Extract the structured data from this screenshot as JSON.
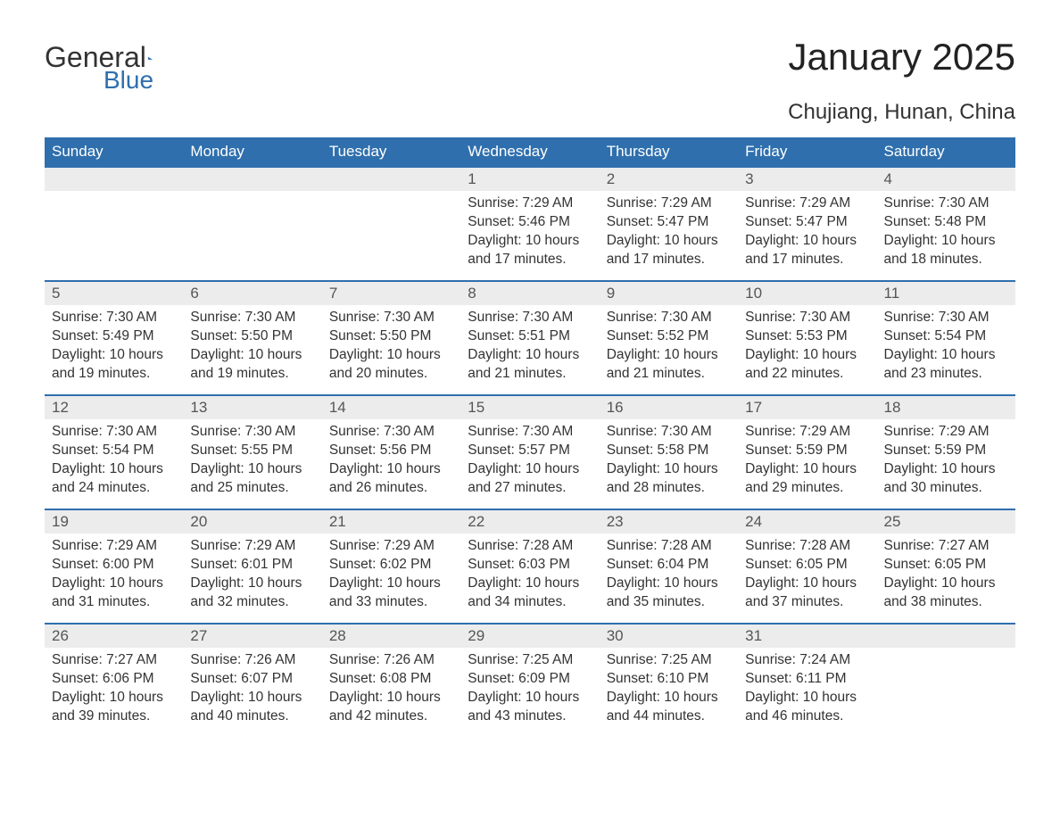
{
  "brand": {
    "part1": "General",
    "part2": "Blue",
    "logo_color": "#2f6fad"
  },
  "title": "January 2025",
  "location": "Chujiang, Hunan, China",
  "colors": {
    "header_bg": "#2f6fad",
    "header_text": "#ffffff",
    "daynum_bg": "#ececec",
    "daynum_border": "#2f6fad",
    "body_text": "#333333",
    "page_bg": "#ffffff"
  },
  "typography": {
    "title_fontsize_pt": 32,
    "location_fontsize_pt": 18,
    "header_fontsize_pt": 13,
    "body_fontsize_pt": 12
  },
  "weekdays": [
    "Sunday",
    "Monday",
    "Tuesday",
    "Wednesday",
    "Thursday",
    "Friday",
    "Saturday"
  ],
  "weeks": [
    [
      {
        "day": "",
        "sunrise": "",
        "sunset": "",
        "daylight": ""
      },
      {
        "day": "",
        "sunrise": "",
        "sunset": "",
        "daylight": ""
      },
      {
        "day": "",
        "sunrise": "",
        "sunset": "",
        "daylight": ""
      },
      {
        "day": "1",
        "sunrise": "Sunrise: 7:29 AM",
        "sunset": "Sunset: 5:46 PM",
        "daylight": "Daylight: 10 hours and 17 minutes."
      },
      {
        "day": "2",
        "sunrise": "Sunrise: 7:29 AM",
        "sunset": "Sunset: 5:47 PM",
        "daylight": "Daylight: 10 hours and 17 minutes."
      },
      {
        "day": "3",
        "sunrise": "Sunrise: 7:29 AM",
        "sunset": "Sunset: 5:47 PM",
        "daylight": "Daylight: 10 hours and 17 minutes."
      },
      {
        "day": "4",
        "sunrise": "Sunrise: 7:30 AM",
        "sunset": "Sunset: 5:48 PM",
        "daylight": "Daylight: 10 hours and 18 minutes."
      }
    ],
    [
      {
        "day": "5",
        "sunrise": "Sunrise: 7:30 AM",
        "sunset": "Sunset: 5:49 PM",
        "daylight": "Daylight: 10 hours and 19 minutes."
      },
      {
        "day": "6",
        "sunrise": "Sunrise: 7:30 AM",
        "sunset": "Sunset: 5:50 PM",
        "daylight": "Daylight: 10 hours and 19 minutes."
      },
      {
        "day": "7",
        "sunrise": "Sunrise: 7:30 AM",
        "sunset": "Sunset: 5:50 PM",
        "daylight": "Daylight: 10 hours and 20 minutes."
      },
      {
        "day": "8",
        "sunrise": "Sunrise: 7:30 AM",
        "sunset": "Sunset: 5:51 PM",
        "daylight": "Daylight: 10 hours and 21 minutes."
      },
      {
        "day": "9",
        "sunrise": "Sunrise: 7:30 AM",
        "sunset": "Sunset: 5:52 PM",
        "daylight": "Daylight: 10 hours and 21 minutes."
      },
      {
        "day": "10",
        "sunrise": "Sunrise: 7:30 AM",
        "sunset": "Sunset: 5:53 PM",
        "daylight": "Daylight: 10 hours and 22 minutes."
      },
      {
        "day": "11",
        "sunrise": "Sunrise: 7:30 AM",
        "sunset": "Sunset: 5:54 PM",
        "daylight": "Daylight: 10 hours and 23 minutes."
      }
    ],
    [
      {
        "day": "12",
        "sunrise": "Sunrise: 7:30 AM",
        "sunset": "Sunset: 5:54 PM",
        "daylight": "Daylight: 10 hours and 24 minutes."
      },
      {
        "day": "13",
        "sunrise": "Sunrise: 7:30 AM",
        "sunset": "Sunset: 5:55 PM",
        "daylight": "Daylight: 10 hours and 25 minutes."
      },
      {
        "day": "14",
        "sunrise": "Sunrise: 7:30 AM",
        "sunset": "Sunset: 5:56 PM",
        "daylight": "Daylight: 10 hours and 26 minutes."
      },
      {
        "day": "15",
        "sunrise": "Sunrise: 7:30 AM",
        "sunset": "Sunset: 5:57 PM",
        "daylight": "Daylight: 10 hours and 27 minutes."
      },
      {
        "day": "16",
        "sunrise": "Sunrise: 7:30 AM",
        "sunset": "Sunset: 5:58 PM",
        "daylight": "Daylight: 10 hours and 28 minutes."
      },
      {
        "day": "17",
        "sunrise": "Sunrise: 7:29 AM",
        "sunset": "Sunset: 5:59 PM",
        "daylight": "Daylight: 10 hours and 29 minutes."
      },
      {
        "day": "18",
        "sunrise": "Sunrise: 7:29 AM",
        "sunset": "Sunset: 5:59 PM",
        "daylight": "Daylight: 10 hours and 30 minutes."
      }
    ],
    [
      {
        "day": "19",
        "sunrise": "Sunrise: 7:29 AM",
        "sunset": "Sunset: 6:00 PM",
        "daylight": "Daylight: 10 hours and 31 minutes."
      },
      {
        "day": "20",
        "sunrise": "Sunrise: 7:29 AM",
        "sunset": "Sunset: 6:01 PM",
        "daylight": "Daylight: 10 hours and 32 minutes."
      },
      {
        "day": "21",
        "sunrise": "Sunrise: 7:29 AM",
        "sunset": "Sunset: 6:02 PM",
        "daylight": "Daylight: 10 hours and 33 minutes."
      },
      {
        "day": "22",
        "sunrise": "Sunrise: 7:28 AM",
        "sunset": "Sunset: 6:03 PM",
        "daylight": "Daylight: 10 hours and 34 minutes."
      },
      {
        "day": "23",
        "sunrise": "Sunrise: 7:28 AM",
        "sunset": "Sunset: 6:04 PM",
        "daylight": "Daylight: 10 hours and 35 minutes."
      },
      {
        "day": "24",
        "sunrise": "Sunrise: 7:28 AM",
        "sunset": "Sunset: 6:05 PM",
        "daylight": "Daylight: 10 hours and 37 minutes."
      },
      {
        "day": "25",
        "sunrise": "Sunrise: 7:27 AM",
        "sunset": "Sunset: 6:05 PM",
        "daylight": "Daylight: 10 hours and 38 minutes."
      }
    ],
    [
      {
        "day": "26",
        "sunrise": "Sunrise: 7:27 AM",
        "sunset": "Sunset: 6:06 PM",
        "daylight": "Daylight: 10 hours and 39 minutes."
      },
      {
        "day": "27",
        "sunrise": "Sunrise: 7:26 AM",
        "sunset": "Sunset: 6:07 PM",
        "daylight": "Daylight: 10 hours and 40 minutes."
      },
      {
        "day": "28",
        "sunrise": "Sunrise: 7:26 AM",
        "sunset": "Sunset: 6:08 PM",
        "daylight": "Daylight: 10 hours and 42 minutes."
      },
      {
        "day": "29",
        "sunrise": "Sunrise: 7:25 AM",
        "sunset": "Sunset: 6:09 PM",
        "daylight": "Daylight: 10 hours and 43 minutes."
      },
      {
        "day": "30",
        "sunrise": "Sunrise: 7:25 AM",
        "sunset": "Sunset: 6:10 PM",
        "daylight": "Daylight: 10 hours and 44 minutes."
      },
      {
        "day": "31",
        "sunrise": "Sunrise: 7:24 AM",
        "sunset": "Sunset: 6:11 PM",
        "daylight": "Daylight: 10 hours and 46 minutes."
      },
      {
        "day": "",
        "sunrise": "",
        "sunset": "",
        "daylight": ""
      }
    ]
  ]
}
